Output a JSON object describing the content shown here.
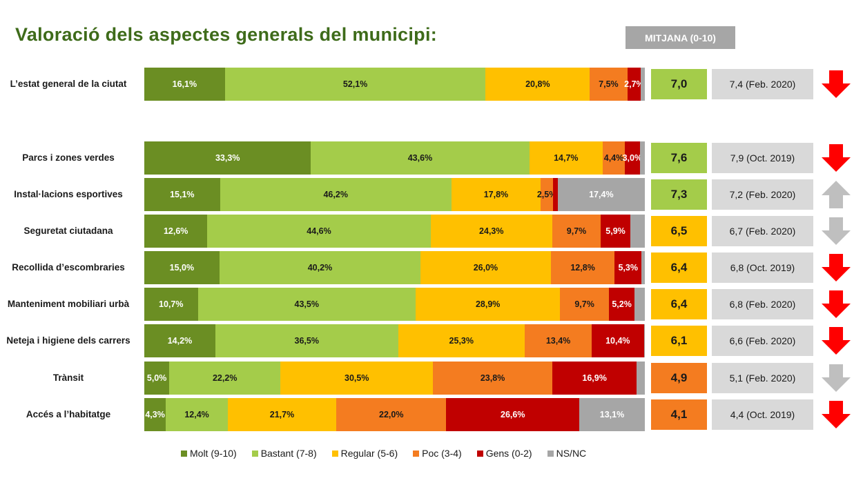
{
  "title": "Valoració dels aspectes generals del municipi:",
  "mean_header": "MITJANA (0-10)",
  "colors": {
    "Molt (9-10)": "#6b8e23",
    "Bastant (7-8)": "#a4cc4a",
    "Regular (5-6)": "#ffc000",
    "Poc (3-4)": "#f47c20",
    "Gens (0-2)": "#c00000",
    "NS/NC": "#a6a6a6"
  },
  "chart_data": {
    "type": "bar",
    "orientation": "horizontal",
    "stacked": true,
    "unit": "%",
    "categories": [
      "L’estat general de la ciutat",
      "Parcs i zones verdes",
      "Instal·lacions esportives",
      "Seguretat ciutadana",
      "Recollida d’escombraries",
      "Manteniment mobiliari urbà",
      "Neteja i higiene dels carrers",
      "Trànsit",
      "Accés a l’habitatge"
    ],
    "series": [
      {
        "name": "Molt (9-10)",
        "values": [
          16.1,
          33.3,
          15.1,
          12.6,
          15.0,
          10.7,
          14.2,
          5.0,
          4.3
        ]
      },
      {
        "name": "Bastant (7-8)",
        "values": [
          52.1,
          43.6,
          46.2,
          44.6,
          40.2,
          43.5,
          36.5,
          22.2,
          12.4
        ]
      },
      {
        "name": "Regular (5-6)",
        "values": [
          20.8,
          14.7,
          17.8,
          24.3,
          26.0,
          28.9,
          25.3,
          30.5,
          21.7
        ]
      },
      {
        "name": "Poc (3-4)",
        "values": [
          7.5,
          4.4,
          2.5,
          9.7,
          12.8,
          9.7,
          13.4,
          23.8,
          22.0
        ]
      },
      {
        "name": "Gens (0-2)",
        "values": [
          2.7,
          3.0,
          0.9,
          5.9,
          5.3,
          5.2,
          10.4,
          16.9,
          26.6
        ]
      },
      {
        "name": "NS/NC",
        "values": [
          0.8,
          1.0,
          17.4,
          2.9,
          0.7,
          2.0,
          0.2,
          1.6,
          13.1
        ]
      }
    ],
    "labels": [
      [
        "16,1%",
        "52,1%",
        "20,8%",
        "7,5%",
        "2,7%",
        ""
      ],
      [
        "33,3%",
        "43,6%",
        "14,7%",
        "4,4%",
        "3,0%",
        ""
      ],
      [
        "15,1%",
        "46,2%",
        "17,8%",
        "2,5%",
        "",
        "17,4%"
      ],
      [
        "12,6%",
        "44,6%",
        "24,3%",
        "9,7%",
        "5,9%",
        ""
      ],
      [
        "15,0%",
        "40,2%",
        "26,0%",
        "12,8%",
        "5,3%",
        ""
      ],
      [
        "10,7%",
        "43,5%",
        "28,9%",
        "9,7%",
        "5,2%",
        ""
      ],
      [
        "14,2%",
        "36,5%",
        "25,3%",
        "13,4%",
        "10,4%",
        ""
      ],
      [
        "5,0%",
        "22,2%",
        "30,5%",
        "23,8%",
        "16,9%",
        ""
      ],
      [
        "4,3%",
        "12,4%",
        "21,7%",
        "22,0%",
        "26,6%",
        "13,1%"
      ]
    ],
    "means": [
      "7,0",
      "7,6",
      "7,3",
      "6,5",
      "6,4",
      "6,4",
      "6,1",
      "4,9",
      "4,1"
    ],
    "previous": [
      "7,4 (Feb. 2020)",
      "7,9 (Oct. 2019)",
      "7,2 (Feb. 2020)",
      "6,7 (Feb. 2020)",
      "6,8 (Oct. 2019)",
      "6,8 (Feb. 2020)",
      "6,6 (Feb. 2020)",
      "5,1 (Feb. 2020)",
      "4,4 (Oct. 2019)"
    ],
    "trends": [
      {
        "icon": "arrow-down-icon",
        "color": "#ff0000"
      },
      {
        "icon": "arrow-down-icon",
        "color": "#ff0000"
      },
      {
        "icon": "arrow-up-icon",
        "color": "#bfbfbf"
      },
      {
        "icon": "arrow-down-icon",
        "color": "#bfbfbf"
      },
      {
        "icon": "arrow-down-icon",
        "color": "#ff0000"
      },
      {
        "icon": "arrow-down-icon",
        "color": "#ff0000"
      },
      {
        "icon": "arrow-down-icon",
        "color": "#ff0000"
      },
      {
        "icon": "arrow-down-icon",
        "color": "#bfbfbf"
      },
      {
        "icon": "arrow-down-icon",
        "color": "#ff0000"
      }
    ],
    "mean_box_colors": [
      "#a4cc4a",
      "#a4cc4a",
      "#a4cc4a",
      "#ffc000",
      "#ffc000",
      "#ffc000",
      "#ffc000",
      "#f47c20",
      "#f47c20"
    ],
    "legend": [
      "Molt (9-10)",
      "Bastant (7-8)",
      "Regular (5-6)",
      "Poc (3-4)",
      "Gens (0-2)",
      "NS/NC"
    ]
  }
}
